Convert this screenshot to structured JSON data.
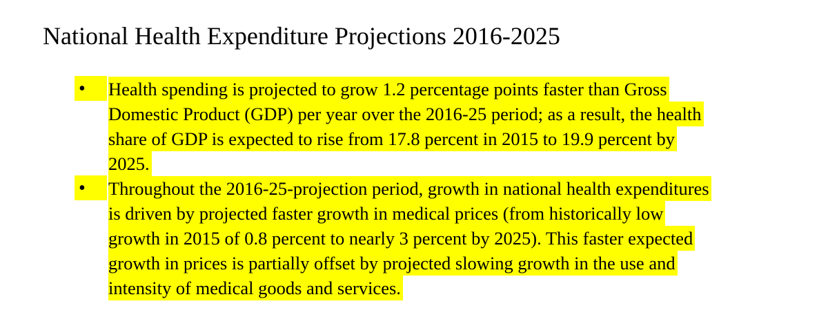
{
  "title": "National Health Expenditure Projections 2016-2025",
  "bullet_marker": "•",
  "highlight_color": "#ffff00",
  "bullets": [
    {
      "lines": [
        "Health spending is projected to grow 1.2 percentage points faster than Gross",
        "Domestic Product (GDP) per year over the 2016-25 period; as a result, the health",
        "share of GDP is expected to rise from 17.8 percent in 2015 to 19.9 percent by",
        "2025."
      ]
    },
    {
      "lines": [
        "Throughout the 2016-25-projection period, growth in national health expenditures",
        "is driven by projected faster growth in medical prices (from historically low",
        "growth in 2015 of 0.8 percent to nearly 3 percent by 2025). This faster expected",
        "growth in prices is partially offset by projected slowing growth in the use and",
        "intensity of medical goods and services."
      ]
    }
  ]
}
